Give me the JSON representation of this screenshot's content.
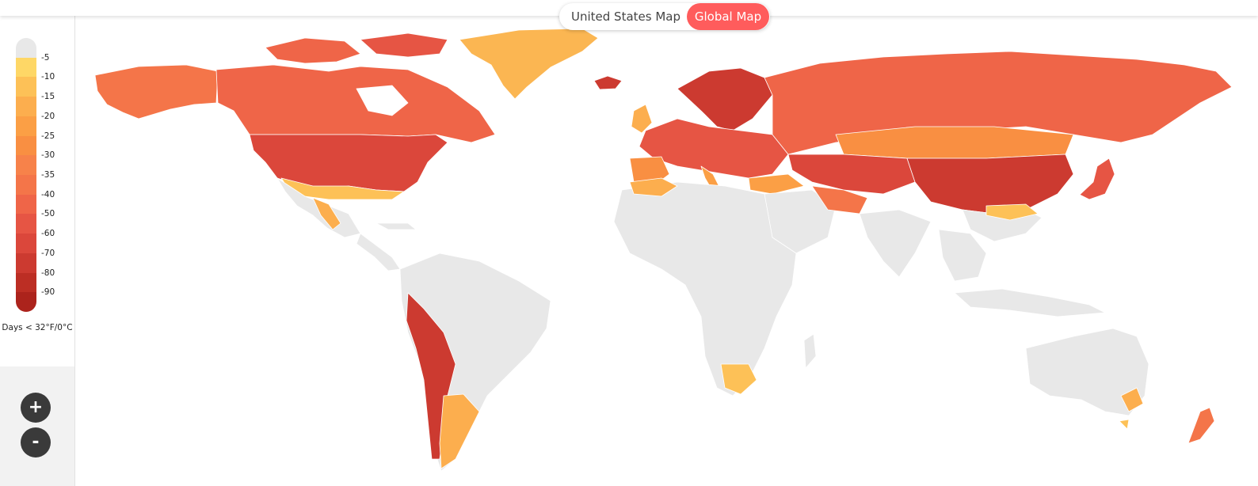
{
  "toggle": {
    "us_label": "United States Map",
    "global_label": "Global Map",
    "active": "global"
  },
  "legend": {
    "title": "Days < 32°F/0°C",
    "ticks": [
      "-5",
      "-10",
      "-15",
      "-20",
      "-25",
      "-30",
      "-35",
      "-40",
      "-50",
      "-60",
      "-70",
      "-80",
      "-90"
    ],
    "colors": [
      "#e8e8e8",
      "#fed766",
      "#fdc157",
      "#fcae4e",
      "#fb9f45",
      "#f98f42",
      "#f7824a",
      "#f47549",
      "#ef6548",
      "#e65544",
      "#db473b",
      "#cc3a30",
      "#bc2e24",
      "#ac231c"
    ]
  },
  "zoom": {
    "in_label": "+",
    "out_label": "-"
  },
  "colors": {
    "land_no_data": "#e8e8e8",
    "accent": "#ff5c5c",
    "border": "#ffffff"
  }
}
